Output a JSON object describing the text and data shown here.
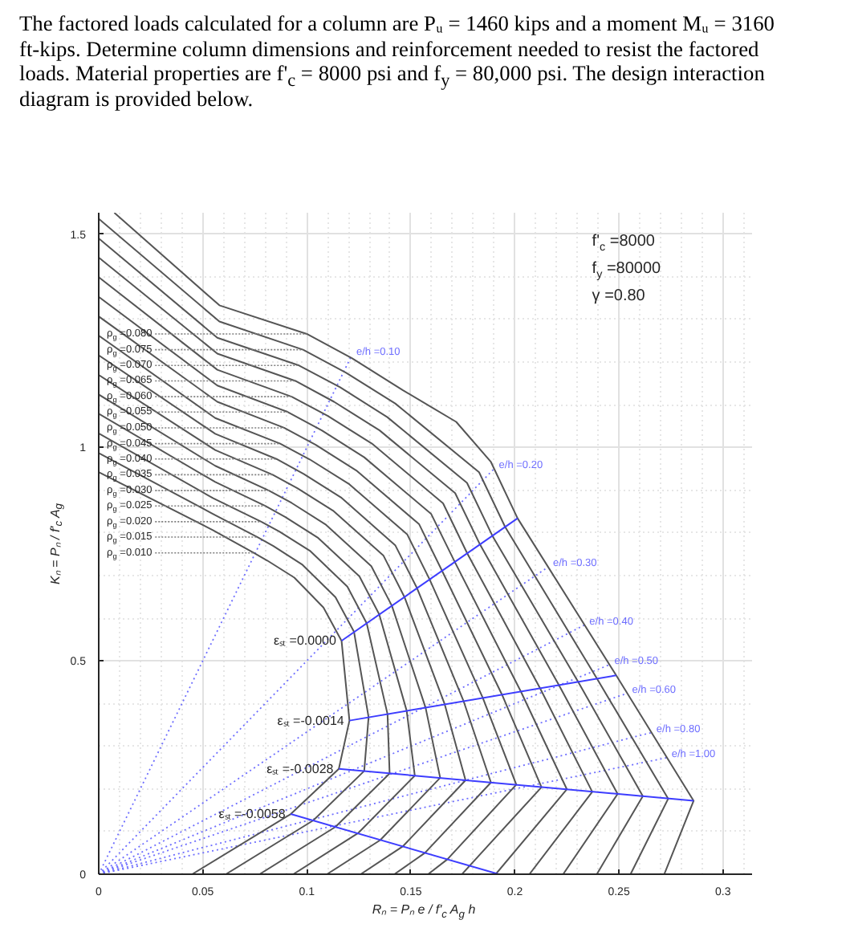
{
  "chart_data": {
    "type": "line",
    "title": "The factored loads calculated for a column are Pᵤ = 1460 kips and a moment Mᵤ = 3160 ft-kips. Determine column dimensions and reinforcement needed to resist the factored loads. Material properties are f'$_{c}$ = 8000 psi and f$_{y}$ = 80,000 psi. The design interaction diagram is provided below.",
    "xlabel": "Rₙ = Pₙ e / f'$_{c}$ A$_{g}$ h",
    "ylabel": "Kₙ = Pₙ / f'$_{c}$ A$_{g}$",
    "xlim": [
      0,
      0.314
    ],
    "ylim": [
      0,
      1.55
    ],
    "xticks": [
      0,
      0.05,
      0.1,
      0.15,
      0.2,
      0.25,
      0.3
    ],
    "yticks": [
      0,
      0.5,
      1,
      1.5
    ],
    "grid": true,
    "line_style": "solid",
    "series": [
      {
        "name": "e/h =0.10",
        "color": "#6e6eff",
        "line_style": "dotted",
        "x": [
          0,
          0.1215
        ],
        "values": [
          0,
          1.215
        ]
      },
      {
        "name": "e/h =0.20",
        "color": "#6e6eff",
        "line_style": "dotted",
        "x": [
          0,
          0.19
        ],
        "values": [
          0,
          0.95
        ]
      },
      {
        "name": "e/h =0.30",
        "color": "#6e6eff",
        "line_style": "dotted",
        "x": [
          0,
          0.216
        ],
        "values": [
          0,
          0.72
        ]
      },
      {
        "name": "e/h =0.40",
        "color": "#6e6eff",
        "line_style": "dotted",
        "x": [
          0,
          0.2335
        ],
        "values": [
          0,
          0.584
        ]
      },
      {
        "name": "e/h =0.50",
        "color": "#6e6eff",
        "line_style": "dotted",
        "x": [
          0,
          0.2455
        ],
        "values": [
          0,
          0.491
        ]
      },
      {
        "name": "e/h =0.60",
        "color": "#6e6eff",
        "line_style": "dotted",
        "x": [
          0,
          0.254
        ],
        "values": [
          0,
          0.424
        ]
      },
      {
        "name": "e/h =0.80",
        "color": "#6e6eff",
        "line_style": "dotted",
        "x": [
          0,
          0.2657
        ],
        "values": [
          0,
          0.332
        ]
      },
      {
        "name": "e/h =1.00",
        "color": "#6e6eff",
        "line_style": "dotted",
        "x": [
          0,
          0.273
        ],
        "values": [
          0,
          0.273
        ]
      },
      {
        "color": "#555555",
        "x": [
          0,
          0.055,
          0.0745,
          0.081,
          0.094,
          0.108,
          0.1167,
          0.1205,
          0.1154,
          0.0923,
          0.0449
        ],
        "values": [
          0.942,
          0.806,
          0.753,
          0.735,
          0.695,
          0.625,
          0.547,
          0.36,
          0.247,
          0.141,
          0
        ]
      },
      {
        "color": "#555555",
        "x": [
          0,
          0.055,
          0.0763,
          0.0839,
          0.0977,
          0.1138,
          0.1227,
          0.1297,
          0.1276,
          0.1031,
          0.0611
        ],
        "values": [
          0.987,
          0.844,
          0.79,
          0.769,
          0.726,
          0.649,
          0.568,
          0.368,
          0.242,
          0.126,
          0
        ]
      },
      {
        "color": "#555555",
        "x": [
          0,
          0.055,
          0.0781,
          0.0868,
          0.1015,
          0.1195,
          0.1288,
          0.1388,
          0.1398,
          0.1138,
          0.0773
        ],
        "values": [
          1.033,
          0.881,
          0.826,
          0.803,
          0.758,
          0.674,
          0.588,
          0.375,
          0.236,
          0.111,
          0
        ]
      },
      {
        "color": "#555555",
        "x": [
          0,
          0.056,
          0.08,
          0.0897,
          0.1052,
          0.1253,
          0.1348,
          0.148,
          0.1519,
          0.1246,
          0.0935
        ],
        "values": [
          1.079,
          0.919,
          0.863,
          0.837,
          0.789,
          0.698,
          0.609,
          0.383,
          0.231,
          0.096,
          0
        ]
      },
      {
        "color": "#555555",
        "x": [
          0,
          0.056,
          0.0818,
          0.0927,
          0.1089,
          0.131,
          0.1409,
          0.1571,
          0.1641,
          0.1353,
          0.1097
        ],
        "values": [
          1.124,
          0.957,
          0.899,
          0.87,
          0.82,
          0.722,
          0.629,
          0.39,
          0.226,
          0.08,
          0
        ]
      },
      {
        "color": "#555555",
        "x": [
          0,
          0.056,
          0.0836,
          0.0956,
          0.1126,
          0.1368,
          0.1469,
          0.1663,
          0.1763,
          0.1461,
          0.1259
        ],
        "values": [
          1.17,
          0.994,
          0.936,
          0.904,
          0.852,
          0.747,
          0.65,
          0.398,
          0.22,
          0.065,
          0
        ]
      },
      {
        "color": "#555555",
        "x": [
          0,
          0.056,
          0.0854,
          0.0985,
          0.1164,
          0.1425,
          0.153,
          0.1754,
          0.1885,
          0.1568,
          0.1421
        ],
        "values": [
          1.216,
          1.032,
          0.973,
          0.938,
          0.883,
          0.771,
          0.67,
          0.405,
          0.215,
          0.05,
          0
        ]
      },
      {
        "color": "#555555",
        "x": [
          0,
          0.056,
          0.0872,
          0.1014,
          0.1201,
          0.1483,
          0.159,
          0.1846,
          0.2007,
          0.1676,
          0.1583
        ],
        "values": [
          1.262,
          1.069,
          1.009,
          0.972,
          0.915,
          0.796,
          0.691,
          0.413,
          0.21,
          0.035,
          0
        ]
      },
      {
        "color": "#555555",
        "x": [
          0,
          0.057,
          0.0891,
          0.1043,
          0.1238,
          0.154,
          0.165,
          0.1938,
          0.2128,
          0.1783,
          0.1746
        ],
        "values": [
          1.307,
          1.107,
          1.046,
          1.006,
          0.946,
          0.82,
          0.711,
          0.421,
          0.204,
          0.02,
          0
        ]
      },
      {
        "color": "#555555",
        "x": [
          0,
          0.057,
          0.0909,
          0.1072,
          0.1276,
          0.1598,
          0.1711,
          0.2029,
          0.225,
          0.1908
        ],
        "values": [
          1.353,
          1.145,
          1.083,
          1.04,
          0.977,
          0.844,
          0.732,
          0.428,
          0.199,
          0
        ]
      },
      {
        "color": "#555555",
        "x": [
          0,
          0.057,
          0.0927,
          0.1101,
          0.1313,
          0.1655,
          0.1771,
          0.2121,
          0.2372,
          0.207
        ],
        "values": [
          1.399,
          1.182,
          1.119,
          1.074,
          1.009,
          0.869,
          0.752,
          0.436,
          0.193,
          0
        ]
      },
      {
        "color": "#555555",
        "x": [
          0,
          0.057,
          0.0945,
          0.1131,
          0.135,
          0.1713,
          0.1832,
          0.2212,
          0.2494,
          0.2232
        ],
        "values": [
          1.445,
          1.22,
          1.156,
          1.107,
          1.04,
          0.893,
          0.773,
          0.443,
          0.188,
          0
        ]
      },
      {
        "color": "#555555",
        "x": [
          0,
          0.057,
          0.0963,
          0.116,
          0.1387,
          0.177,
          0.1892,
          0.2304,
          0.2615,
          0.2394
        ],
        "values": [
          1.49,
          1.257,
          1.192,
          1.141,
          1.071,
          0.917,
          0.793,
          0.451,
          0.183,
          0
        ]
      },
      {
        "color": "#555555",
        "x": [
          0,
          0.058,
          0.0982,
          0.1189,
          0.1425,
          0.1828,
          0.1953,
          0.2395,
          0.2737,
          0.2556
        ],
        "values": [
          1.536,
          1.295,
          1.229,
          1.175,
          1.103,
          0.942,
          0.814,
          0.458,
          0.177,
          0
        ]
      },
      {
        "color": "#555555",
        "x": [
          0.0075,
          0.058,
          0.1,
          0.1218,
          0.1462,
          0.1718,
          0.1885,
          0.2013,
          0.2487,
          0.2859,
          0.2718
        ],
        "values": [
          1.55,
          1.333,
          1.266,
          1.209,
          1.134,
          1.06,
          0.966,
          0.834,
          0.466,
          0.172,
          0
        ]
      },
      {
        "name": "εₛₜ =0.0000",
        "color": "#3d3dff",
        "x": [
          0.2013,
          0.1167
        ],
        "values": [
          0.834,
          0.547
        ]
      },
      {
        "name": "εₛₜ =-0.0014",
        "color": "#3d3dff",
        "x": [
          0.2487,
          0.1205
        ],
        "values": [
          0.466,
          0.36
        ]
      },
      {
        "name": "εₛₜ =-0.0028",
        "color": "#3d3dff",
        "x": [
          0.2859,
          0.1154
        ],
        "values": [
          0.172,
          0.247
        ]
      },
      {
        "name": "εₛₜ =-0.0058",
        "color": "#3d3dff",
        "x": [
          0.1923,
          0.0923
        ],
        "values": [
          0,
          0.141
        ]
      }
    ],
    "annotations": [
      {
        "text": "ρ$_{g}$ =0.080",
        "x": 0.1,
        "y": 1.266
      },
      {
        "text": "ρ$_{g}$ =0.075",
        "x": 0.0982,
        "y": 1.229
      },
      {
        "text": "ρ$_{g}$ =0.070",
        "x": 0.0963,
        "y": 1.192
      },
      {
        "text": "ρ$_{g}$ =0.065",
        "x": 0.0945,
        "y": 1.156
      },
      {
        "text": "ρ$_{g}$ =0.060",
        "x": 0.0927,
        "y": 1.119
      },
      {
        "text": "ρ$_{g}$ =0.055",
        "x": 0.0909,
        "y": 1.083
      },
      {
        "text": "ρ$_{g}$ =0.050",
        "x": 0.0891,
        "y": 1.046
      },
      {
        "text": "ρ$_{g}$ =0.045",
        "x": 0.0872,
        "y": 1.009
      },
      {
        "text": "ρ$_{g}$ =0.040",
        "x": 0.0854,
        "y": 0.973
      },
      {
        "text": "ρ$_{g}$ =0.035",
        "x": 0.0836,
        "y": 0.936
      },
      {
        "text": "ρ$_{g}$ =0.030",
        "x": 0.0818,
        "y": 0.899
      },
      {
        "text": "ρ$_{g}$ =0.025",
        "x": 0.08,
        "y": 0.863
      },
      {
        "text": "ρ$_{g}$ =0.020",
        "x": 0.0781,
        "y": 0.826
      },
      {
        "text": "ρ$_{g}$ =0.015",
        "x": 0.0763,
        "y": 0.79
      },
      {
        "text": "ρ$_{g}$ =0.010",
        "x": 0.0745,
        "y": 0.753
      },
      "f'$_{c}$ =8000",
      "f$_{y}$ =80000",
      "γ =0.80"
    ]
  }
}
